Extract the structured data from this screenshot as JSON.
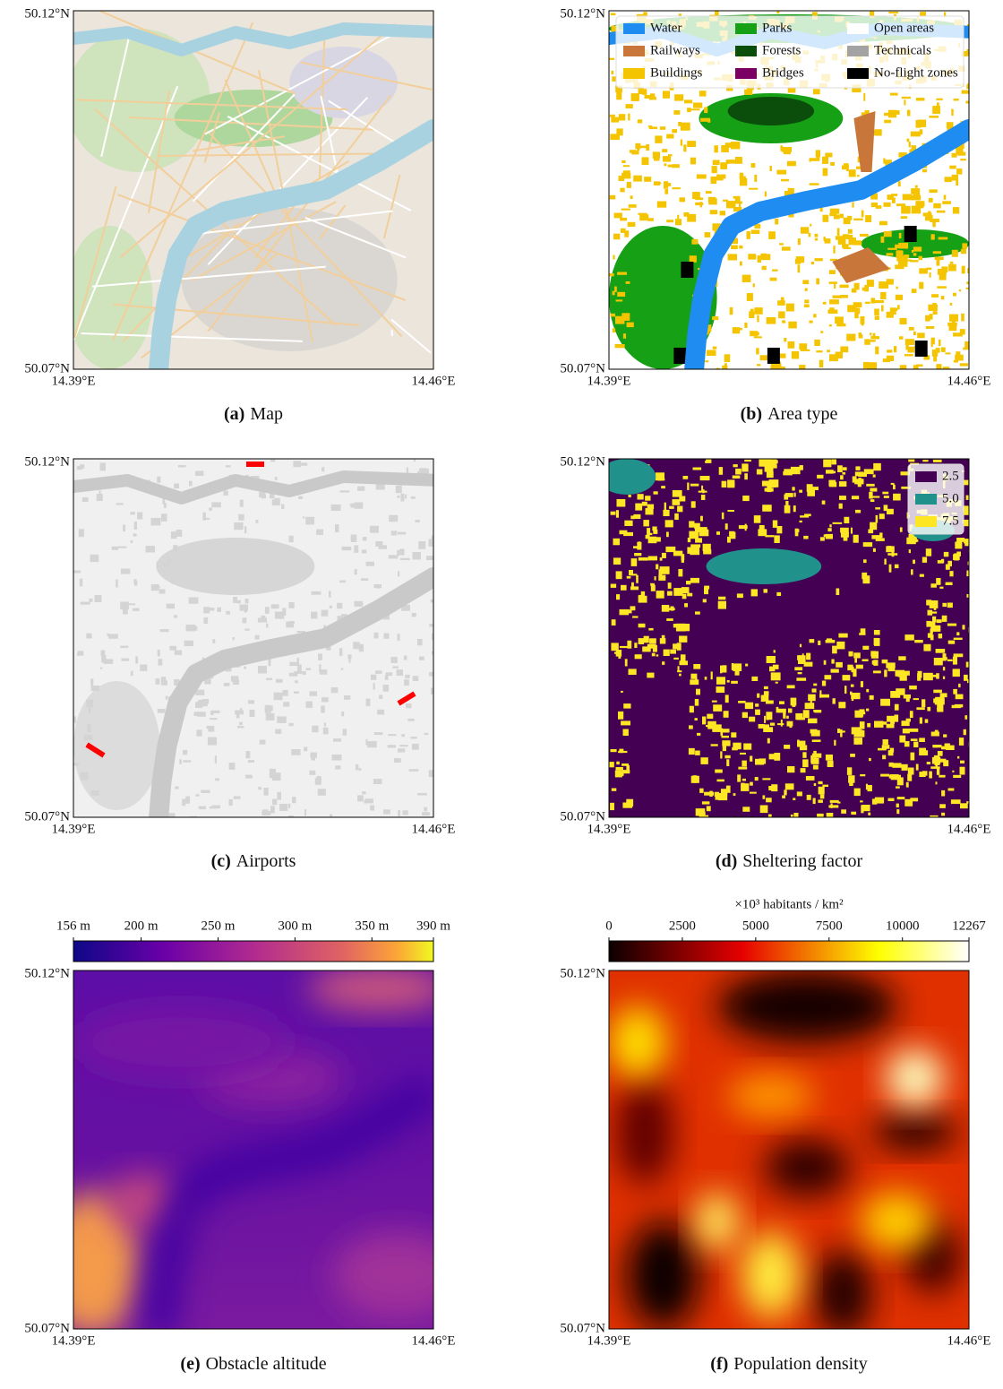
{
  "panels": [
    {
      "label": "(a)",
      "caption": "Map",
      "yticks": [
        "50.12°N",
        "50.07°N"
      ],
      "xticks": [
        "14.39°E",
        "14.46°E"
      ]
    },
    {
      "label": "(b)",
      "caption": "Area type",
      "yticks": [
        "50.12°N",
        "50.07°N"
      ],
      "xticks": [
        "14.39°E",
        "14.46°E"
      ],
      "legend": [
        {
          "name": "Water",
          "color": "#1e8cf0"
        },
        {
          "name": "Railways",
          "color": "#c8763a"
        },
        {
          "name": "Buildings",
          "color": "#f5c400"
        },
        {
          "name": "Parks",
          "color": "#16a016"
        },
        {
          "name": "Forests",
          "color": "#0b4d0b"
        },
        {
          "name": "Bridges",
          "color": "#7a0063"
        },
        {
          "name": "Open areas",
          "color": "#ffffff"
        },
        {
          "name": "Technicals",
          "color": "#a3a3a3"
        },
        {
          "name": "No-flight zones",
          "color": "#000000"
        }
      ]
    },
    {
      "label": "(c)",
      "caption": "Airports",
      "yticks": [
        "50.12°N",
        "50.07°N"
      ],
      "xticks": [
        "14.39°E",
        "14.46°E"
      ]
    },
    {
      "label": "(d)",
      "caption": "Sheltering factor",
      "yticks": [
        "50.12°N",
        "50.07°N"
      ],
      "xticks": [
        "14.39°E",
        "14.46°E"
      ],
      "legend": [
        {
          "name": "2.5",
          "color": "#440154"
        },
        {
          "name": "5.0",
          "color": "#21918c"
        },
        {
          "name": "7.5",
          "color": "#fde725"
        }
      ]
    },
    {
      "label": "(e)",
      "caption": "Obstacle altitude",
      "yticks": [
        "50.12°N",
        "50.07°N"
      ],
      "xticks": [
        "14.39°E",
        "14.46°E"
      ],
      "colorbar": {
        "colormap": "plasma",
        "lim": [
          156,
          390
        ],
        "ticks": [
          {
            "value": 156,
            "label": "156 m"
          },
          {
            "value": 200,
            "label": "200 m"
          },
          {
            "value": 250,
            "label": "250 m"
          },
          {
            "value": 300,
            "label": "300 m"
          },
          {
            "value": 350,
            "label": "350 m"
          },
          {
            "value": 390,
            "label": "390 m"
          }
        ]
      }
    },
    {
      "label": "(f)",
      "caption": "Population density",
      "yticks": [
        "50.12°N",
        "50.07°N"
      ],
      "xticks": [
        "14.39°E",
        "14.46°E"
      ],
      "colorbar": {
        "title": "×10³ habitants / km²",
        "colormap": "hot",
        "lim": [
          0,
          12267
        ],
        "ticks": [
          0,
          2500,
          5000,
          7500,
          10000,
          12267
        ]
      }
    }
  ]
}
